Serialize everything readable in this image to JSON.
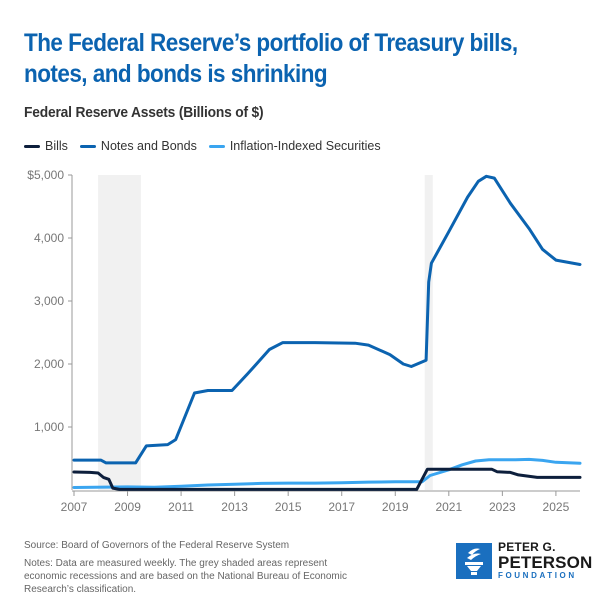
{
  "header": {
    "title": "The Federal Reserve’s portfolio of Treasury bills, notes, and bonds is shrinking",
    "subtitle": "Federal Reserve Assets (Billions of $)"
  },
  "footer": {
    "source": "Source: Board of Governors of the Federal Reserve System",
    "notes": "Notes: Data are measured weekly. The grey shaded areas represent economic recessions and are based on the National Bureau of Economic Research’s classification."
  },
  "logo": {
    "line1": "PETER G.",
    "line2": "PETERSON",
    "line3": "FOUNDATION",
    "color": "#1a6fbf"
  },
  "chart_data": {
    "type": "line",
    "title": "Federal Reserve Assets (Billions of $)",
    "xlabel": "",
    "ylabel": "",
    "xlim": [
      2007,
      2025.9
    ],
    "ylim": [
      0,
      5000
    ],
    "grid": false,
    "legend_position": "top-left",
    "x_ticks": [
      2007,
      2009,
      2011,
      2013,
      2015,
      2017,
      2019,
      2021,
      2023,
      2025
    ],
    "x_tick_labels": [
      "2007",
      "2009",
      "2011",
      "2013",
      "2015",
      "2017",
      "2019",
      "2021",
      "2023",
      "2025"
    ],
    "y_ticks": [
      1000,
      2000,
      3000,
      4000,
      5000
    ],
    "y_tick_labels": [
      "1,000",
      "2,000",
      "3,000",
      "4,000",
      "$5,000"
    ],
    "recessions": [
      {
        "start": 2007.9,
        "end": 2009.5
      },
      {
        "start": 2020.1,
        "end": 2020.4
      }
    ],
    "series": [
      {
        "name": "Bills",
        "color": "#0d1f3c",
        "x": [
          2007,
          2007.6,
          2007.9,
          2008.1,
          2008.3,
          2008.45,
          2008.7,
          2012.5,
          2019.8,
          2020.2,
          2021.0,
          2022.6,
          2022.8,
          2023.3,
          2023.6,
          2024.3,
          2025.9
        ],
        "y": [
          285,
          280,
          270,
          200,
          170,
          30,
          10,
          10,
          10,
          330,
          330,
          330,
          290,
          280,
          240,
          200,
          200
        ]
      },
      {
        "name": "Notes and Bonds",
        "color": "#0b63b0",
        "x": [
          2007,
          2008.0,
          2008.2,
          2009.0,
          2009.3,
          2009.7,
          2010.5,
          2010.8,
          2011.5,
          2012.0,
          2012.9,
          2013.5,
          2014.3,
          2014.8,
          2016.0,
          2017.5,
          2018.0,
          2018.8,
          2019.3,
          2019.6,
          2020.15,
          2020.25,
          2020.35,
          2021.0,
          2021.7,
          2022.1,
          2022.4,
          2022.7,
          2023.3,
          2024.0,
          2024.5,
          2025.0,
          2025.9
        ],
        "y": [
          475,
          475,
          430,
          430,
          430,
          700,
          720,
          800,
          1540,
          1580,
          1580,
          1850,
          2230,
          2340,
          2340,
          2330,
          2300,
          2150,
          2000,
          1960,
          2060,
          3300,
          3600,
          4100,
          4650,
          4900,
          4980,
          4950,
          4550,
          4150,
          3820,
          3650,
          3580
        ]
      },
      {
        "name": "Inflation-Indexed Securities",
        "color": "#3aa5f0",
        "x": [
          2007,
          2009.0,
          2010.0,
          2011.0,
          2012.0,
          2013.0,
          2014.0,
          2015.0,
          2016.0,
          2017.0,
          2018.0,
          2019.0,
          2020.0,
          2020.3,
          2021.0,
          2021.5,
          2022.0,
          2022.5,
          2023.5,
          2024.0,
          2024.5,
          2025.0,
          2025.9
        ],
        "y": [
          40,
          50,
          45,
          60,
          80,
          90,
          105,
          110,
          110,
          115,
          125,
          130,
          130,
          230,
          320,
          400,
          460,
          480,
          480,
          485,
          470,
          440,
          425
        ]
      }
    ]
  }
}
